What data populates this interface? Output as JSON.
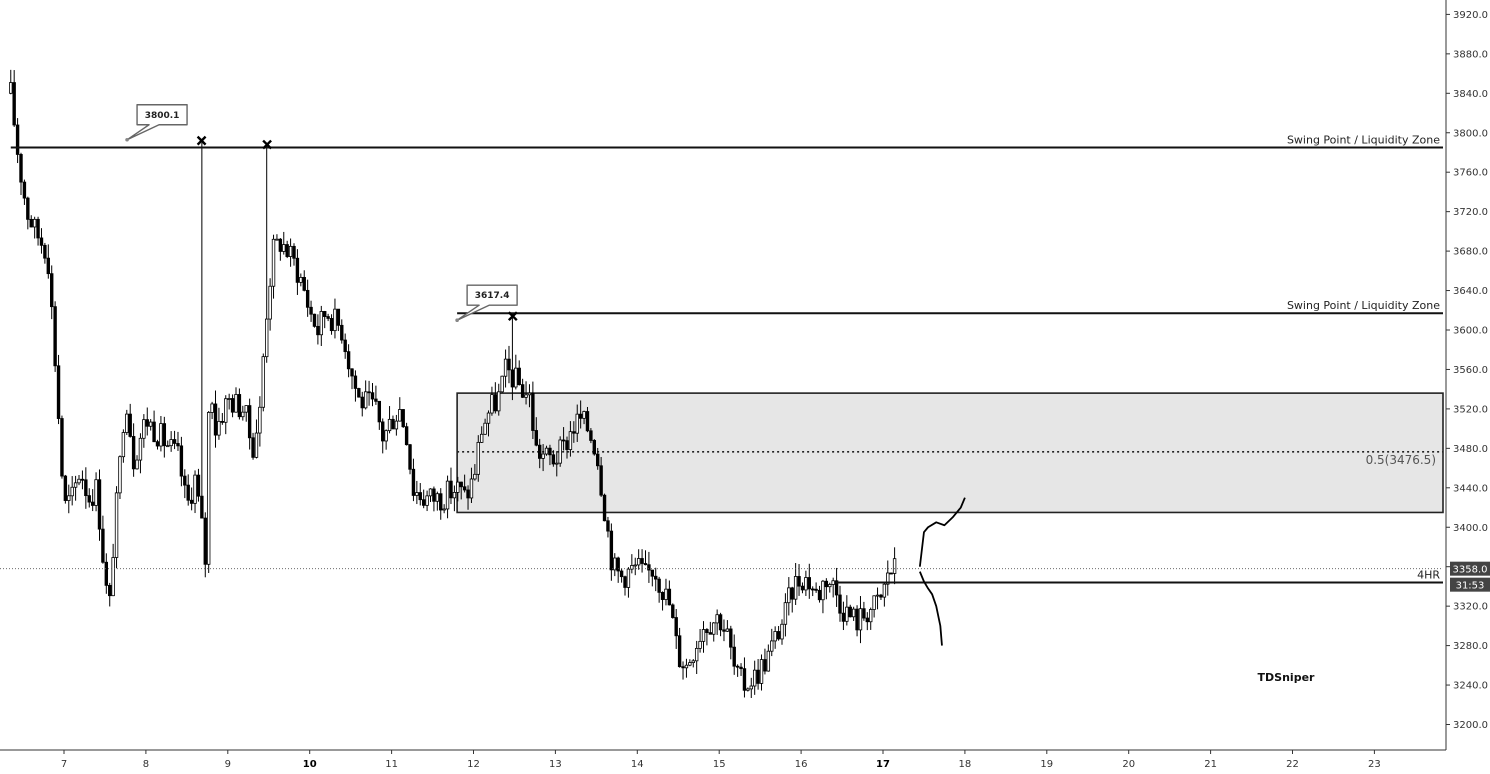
{
  "chart_data": {
    "type": "candlestick",
    "x_ticks": [
      "7",
      "8",
      "9",
      "10",
      "11",
      "12",
      "13",
      "14",
      "15",
      "16",
      "17",
      "18",
      "19",
      "20",
      "21",
      "22",
      "23"
    ],
    "bold_ticks": [
      "10",
      "17"
    ],
    "y_ticks": [
      "3200.0",
      "3240.0",
      "3280.0",
      "3320.0",
      "3360.0",
      "3400.0",
      "3440.0",
      "3480.0",
      "3520.0",
      "3560.0",
      "3600.0",
      "3640.0",
      "3680.0",
      "3720.0",
      "3760.0",
      "3800.0",
      "3840.0",
      "3880.0",
      "3920.0"
    ],
    "ylim": [
      3182,
      3932
    ],
    "xlim": [
      6.35,
      23.75
    ],
    "path_points": [
      [
        6.35,
        3840
      ],
      [
        6.45,
        3770
      ],
      [
        6.55,
        3720
      ],
      [
        6.65,
        3700
      ],
      [
        6.8,
        3680
      ],
      [
        6.9,
        3560
      ],
      [
        7.0,
        3420
      ],
      [
        7.1,
        3430
      ],
      [
        7.2,
        3460
      ],
      [
        7.3,
        3430
      ],
      [
        7.4,
        3440
      ],
      [
        7.5,
        3350
      ],
      [
        7.55,
        3310
      ],
      [
        7.6,
        3380
      ],
      [
        7.7,
        3480
      ],
      [
        7.75,
        3540
      ],
      [
        7.85,
        3470
      ],
      [
        8.0,
        3510
      ],
      [
        8.2,
        3490
      ],
      [
        8.4,
        3470
      ],
      [
        8.5,
        3420
      ],
      [
        8.6,
        3450
      ],
      [
        8.7,
        3390
      ],
      [
        8.72,
        3350
      ],
      [
        8.78,
        3560
      ],
      [
        8.85,
        3500
      ],
      [
        9.0,
        3530
      ],
      [
        9.2,
        3520
      ],
      [
        9.3,
        3480
      ],
      [
        9.4,
        3520
      ],
      [
        9.45,
        3600
      ],
      [
        9.55,
        3680
      ],
      [
        9.65,
        3690
      ],
      [
        9.8,
        3670
      ],
      [
        9.9,
        3650
      ],
      [
        10.0,
        3620
      ],
      [
        10.1,
        3600
      ],
      [
        10.2,
        3620
      ],
      [
        10.4,
        3600
      ],
      [
        10.5,
        3560
      ],
      [
        10.6,
        3530
      ],
      [
        10.8,
        3520
      ],
      [
        10.9,
        3490
      ],
      [
        11.0,
        3510
      ],
      [
        11.1,
        3520
      ],
      [
        11.2,
        3490
      ],
      [
        11.25,
        3440
      ],
      [
        11.4,
        3430
      ],
      [
        11.6,
        3430
      ],
      [
        11.8,
        3440
      ],
      [
        11.9,
        3430
      ],
      [
        12.0,
        3450
      ],
      [
        12.1,
        3500
      ],
      [
        12.2,
        3520
      ],
      [
        12.3,
        3530
      ],
      [
        12.4,
        3560
      ],
      [
        12.5,
        3550
      ],
      [
        12.6,
        3540
      ],
      [
        12.7,
        3530
      ],
      [
        12.75,
        3480
      ],
      [
        12.9,
        3470
      ],
      [
        13.0,
        3470
      ],
      [
        13.1,
        3480
      ],
      [
        13.2,
        3500
      ],
      [
        13.3,
        3510
      ],
      [
        13.4,
        3500
      ],
      [
        13.5,
        3480
      ],
      [
        13.6,
        3420
      ],
      [
        13.7,
        3360
      ],
      [
        13.8,
        3350
      ],
      [
        14.0,
        3360
      ],
      [
        14.1,
        3350
      ],
      [
        14.2,
        3360
      ],
      [
        14.4,
        3320
      ],
      [
        14.5,
        3270
      ],
      [
        14.6,
        3260
      ],
      [
        14.7,
        3280
      ],
      [
        14.8,
        3300
      ],
      [
        15.0,
        3310
      ],
      [
        15.1,
        3290
      ],
      [
        15.2,
        3250
      ],
      [
        15.3,
        3240
      ],
      [
        15.45,
        3250
      ],
      [
        15.6,
        3270
      ],
      [
        15.7,
        3290
      ],
      [
        15.8,
        3310
      ],
      [
        15.9,
        3340
      ],
      [
        16.0,
        3350
      ],
      [
        16.1,
        3345
      ],
      [
        16.2,
        3330
      ],
      [
        16.3,
        3350
      ],
      [
        16.4,
        3340
      ],
      [
        16.5,
        3320
      ],
      [
        16.6,
        3310
      ],
      [
        16.7,
        3305
      ],
      [
        16.8,
        3315
      ],
      [
        16.9,
        3320
      ],
      [
        17.0,
        3330
      ],
      [
        17.05,
        3355
      ],
      [
        17.15,
        3358
      ]
    ],
    "spike_highs": [
      [
        8.68,
        3790
      ],
      [
        9.48,
        3790
      ],
      [
        12.48,
        3617
      ]
    ],
    "swing_lines": [
      {
        "price": 3785,
        "x_start": 6.35,
        "label": "Swing Point / Liquidity Zone"
      },
      {
        "price": 3617,
        "x_start": 11.8,
        "label": "Swing Point / Liquidity Zone"
      }
    ],
    "markers": [
      {
        "x": 8.68,
        "price": 3792
      },
      {
        "x": 9.48,
        "price": 3788
      },
      {
        "x": 12.48,
        "price": 3614
      }
    ],
    "callouts": [
      {
        "text": "3800.1",
        "anchor_x": 7.77,
        "anchor_price": 3800
      },
      {
        "text": "3617.4",
        "anchor_x": 11.8,
        "anchor_price": 3617
      }
    ],
    "zone": {
      "x_start": 11.8,
      "top": 3536,
      "bottom": 3415,
      "mid": 3476.5,
      "mid_label": "0.5(3476.5)"
    },
    "level_4hr": {
      "price": 3344,
      "x_start": 16.42,
      "label": "4HR"
    },
    "current_price": {
      "value": "3358.0",
      "price": 3358
    },
    "countdown": "31:53",
    "projection_up": [
      [
        17.5,
        3395
      ],
      [
        17.55,
        3400
      ],
      [
        17.65,
        3405
      ],
      [
        17.75,
        3402
      ],
      [
        17.85,
        3410
      ],
      [
        17.95,
        3420
      ],
      [
        18.0,
        3430
      ]
    ],
    "projection_down": [
      [
        17.45,
        3355
      ],
      [
        17.5,
        3345
      ],
      [
        17.55,
        3338
      ],
      [
        17.6,
        3332
      ],
      [
        17.65,
        3320
      ],
      [
        17.7,
        3300
      ],
      [
        17.72,
        3280
      ]
    ],
    "projection_up_start": [
      17.45,
      3360
    ],
    "brand": "TDSniper"
  }
}
